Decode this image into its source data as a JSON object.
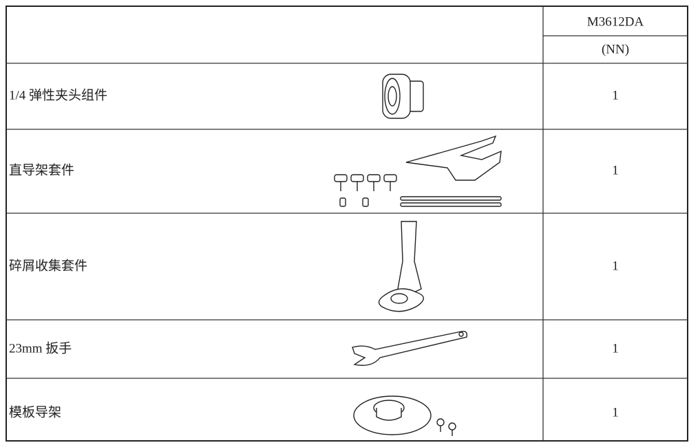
{
  "table": {
    "header": [
      "M3612DA",
      "(NN)"
    ],
    "rows": [
      [
        "1/4 弹性夹头组件",
        "1"
      ],
      [
        "直导架套件",
        "1"
      ],
      [
        "碎屑收集套件",
        "1"
      ],
      [
        "23mm 扳手",
        "1"
      ],
      [
        "模板导架",
        "1"
      ]
    ]
  }
}
